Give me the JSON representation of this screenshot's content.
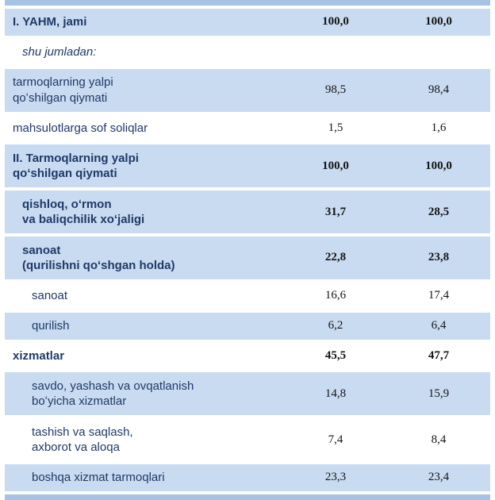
{
  "table": {
    "colors": {
      "shaded_row_bg": "#c9dbf0",
      "accent_bar": "#a6c3e5",
      "label_text": "#1f3a68",
      "value_text": "#141414"
    },
    "rows": [
      {
        "label": "I. YAHM, jami",
        "v1": "100,0",
        "v2": "100,0",
        "bold": true,
        "italic": false,
        "shaded": true,
        "indent": 1
      },
      {
        "label": "shu jumladan:",
        "v1": "",
        "v2": "",
        "bold": false,
        "italic": true,
        "shaded": false,
        "indent": 2
      },
      {
        "label": "tarmoqlarning yalpi\nqoʻshilgan qiymati",
        "v1": "98,5",
        "v2": "98,4",
        "bold": false,
        "italic": false,
        "shaded": true,
        "indent": 1
      },
      {
        "label": "mahsulotlarga sof soliqlar",
        "v1": "1,5",
        "v2": "1,6",
        "bold": false,
        "italic": false,
        "shaded": false,
        "indent": 1
      },
      {
        "label": "II. Tarmoqlarning yalpi\nqoʻshilgan qiymati",
        "v1": "100,0",
        "v2": "100,0",
        "bold": true,
        "italic": false,
        "shaded": true,
        "indent": 1
      },
      {
        "label": "qishloq, oʻrmon\nva baliqchilik xoʻjaligi",
        "v1": "31,7",
        "v2": "28,5",
        "bold": true,
        "italic": false,
        "shaded": true,
        "indent": 2
      },
      {
        "label": "sanoat\n(qurilishni qoʻshgan holda)",
        "v1": "22,8",
        "v2": "23,8",
        "bold": true,
        "italic": false,
        "shaded": true,
        "indent": 2
      },
      {
        "label": "sanoat",
        "v1": "16,6",
        "v2": "17,4",
        "bold": false,
        "italic": false,
        "shaded": false,
        "indent": 3
      },
      {
        "label": "qurilish",
        "v1": "6,2",
        "v2": "6,4",
        "bold": false,
        "italic": false,
        "shaded": true,
        "indent": 3
      },
      {
        "label": "xizmatlar",
        "v1": "45,5",
        "v2": "47,7",
        "bold": true,
        "italic": false,
        "shaded": false,
        "indent": 1
      },
      {
        "label": "savdo, yashash va ovqatlanish\nboʻyicha xizmatlar",
        "v1": "14,8",
        "v2": "15,9",
        "bold": false,
        "italic": false,
        "shaded": true,
        "indent": 3
      },
      {
        "label": "tashish va saqlash,\naxborot va aloqa",
        "v1": "7,4",
        "v2": "8,4",
        "bold": false,
        "italic": false,
        "shaded": false,
        "indent": 3
      },
      {
        "label": "boshqa xizmat tarmoqlari",
        "v1": "23,3",
        "v2": "23,4",
        "bold": false,
        "italic": false,
        "shaded": true,
        "indent": 3
      }
    ]
  }
}
